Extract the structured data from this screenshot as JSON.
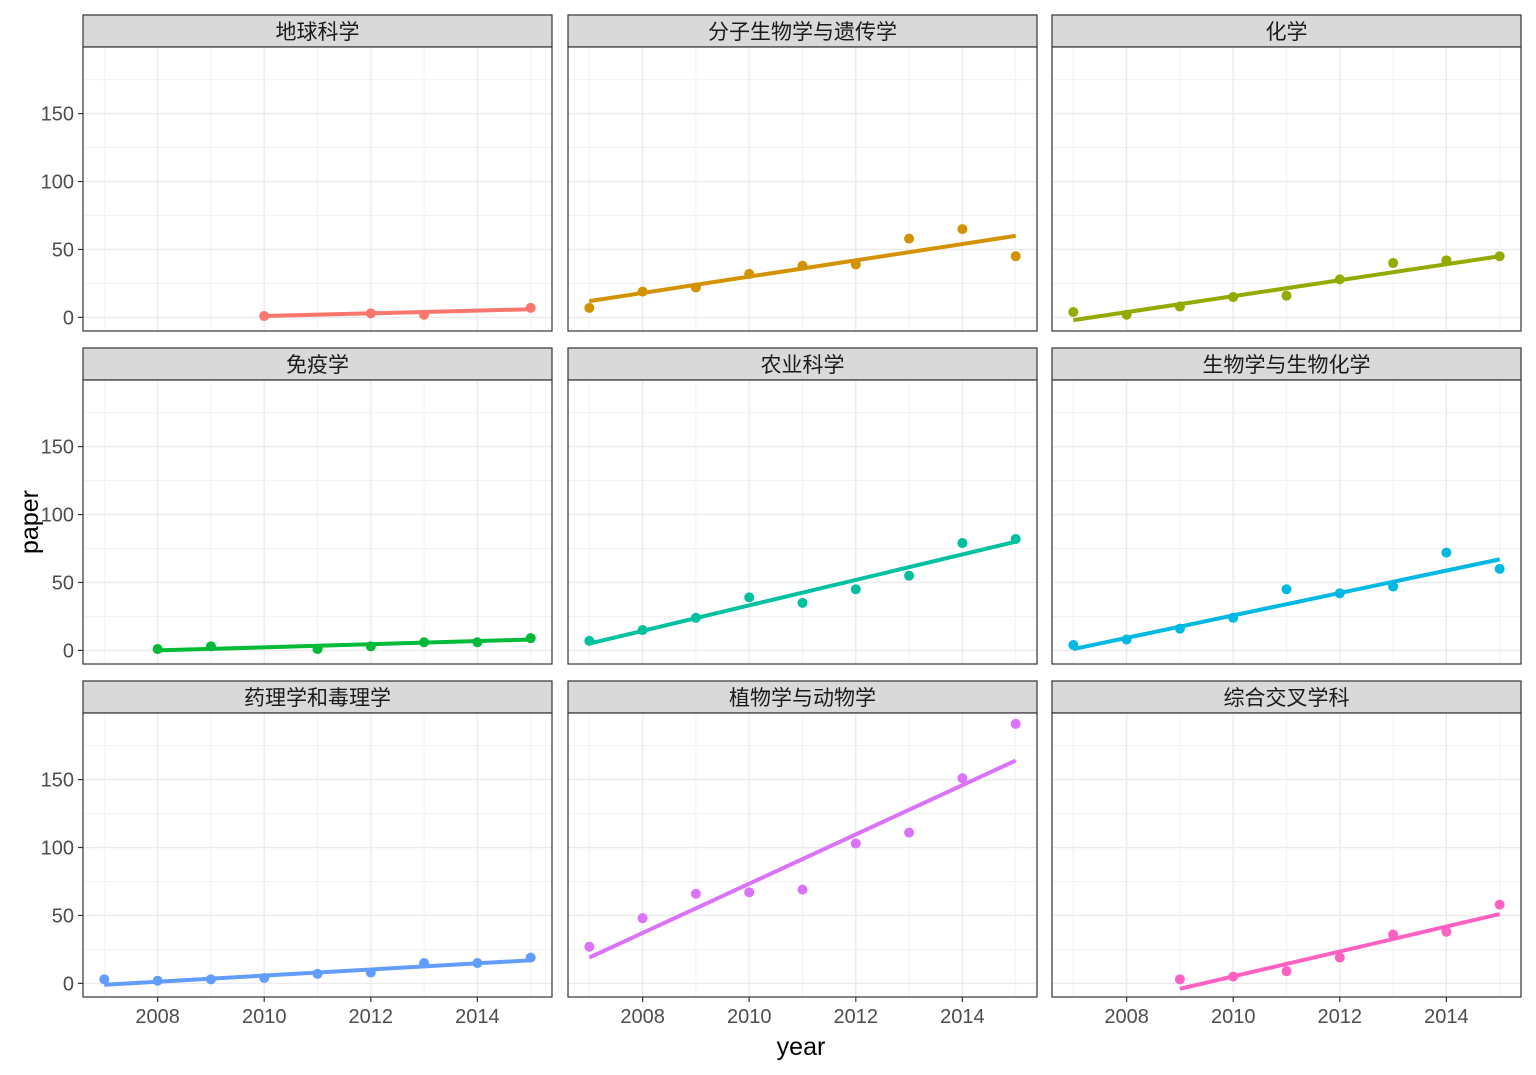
{
  "chart_data": {
    "type": "scatter",
    "layout": "facet-grid 3x3",
    "xlabel": "year",
    "ylabel": "paper",
    "xlim": [
      2006.6,
      2015.4
    ],
    "ylim": [
      -10,
      199
    ],
    "x_ticks": [
      2008,
      2010,
      2012,
      2014
    ],
    "y_ticks": [
      0,
      50,
      100,
      150
    ],
    "grid": "on",
    "legend": "none",
    "overlay": "linear fit line per panel",
    "panels": [
      {
        "title": "地球科学",
        "color": "#F8766D",
        "x": [
          2010,
          2012,
          2013,
          2015
        ],
        "y": [
          1,
          3,
          2,
          7
        ],
        "fit": [
          [
            2010,
            1
          ],
          [
            2015,
            6
          ]
        ]
      },
      {
        "title": "分子生物学与遗传学",
        "color": "#D39200",
        "x": [
          2007,
          2008,
          2009,
          2010,
          2011,
          2012,
          2013,
          2014,
          2015
        ],
        "y": [
          7,
          19,
          22,
          32,
          38,
          39,
          58,
          65,
          45
        ],
        "fit": [
          [
            2007,
            12
          ],
          [
            2015,
            60
          ]
        ]
      },
      {
        "title": "化学",
        "color": "#93AA00",
        "x": [
          2007,
          2008,
          2009,
          2010,
          2011,
          2012,
          2013,
          2014,
          2015
        ],
        "y": [
          4,
          2,
          8,
          15,
          16,
          28,
          40,
          42,
          45
        ],
        "fit": [
          [
            2007,
            -2
          ],
          [
            2015,
            45
          ]
        ]
      },
      {
        "title": "免疫学",
        "color": "#00BA38",
        "x": [
          2008,
          2009,
          2011,
          2012,
          2013,
          2014,
          2015
        ],
        "y": [
          1,
          3,
          1,
          3,
          6,
          6,
          9
        ],
        "fit": [
          [
            2008,
            0
          ],
          [
            2015,
            8
          ]
        ]
      },
      {
        "title": "农业科学",
        "color": "#00C19F",
        "x": [
          2007,
          2008,
          2009,
          2010,
          2011,
          2012,
          2013,
          2014,
          2015
        ],
        "y": [
          7,
          15,
          24,
          39,
          35,
          45,
          55,
          79,
          82
        ],
        "fit": [
          [
            2007,
            5
          ],
          [
            2015,
            80
          ]
        ]
      },
      {
        "title": "生物学与生物化学",
        "color": "#00B9E3",
        "x": [
          2007,
          2008,
          2009,
          2010,
          2011,
          2012,
          2013,
          2014,
          2015
        ],
        "y": [
          4,
          8,
          16,
          24,
          45,
          42,
          47,
          72,
          60
        ],
        "fit": [
          [
            2007,
            1
          ],
          [
            2015,
            67
          ]
        ]
      },
      {
        "title": "药理学和毒理学",
        "color": "#619CFF",
        "x": [
          2007,
          2008,
          2009,
          2010,
          2011,
          2012,
          2013,
          2014,
          2015
        ],
        "y": [
          3,
          2,
          3,
          4,
          7,
          8,
          15,
          15,
          19
        ],
        "fit": [
          [
            2007,
            -1
          ],
          [
            2015,
            17
          ]
        ]
      },
      {
        "title": "植物学与动物学",
        "color": "#DB72FB",
        "x": [
          2007,
          2008,
          2009,
          2010,
          2011,
          2012,
          2013,
          2014,
          2015
        ],
        "y": [
          27,
          48,
          66,
          67,
          69,
          103,
          111,
          151,
          191
        ],
        "fit": [
          [
            2007,
            19
          ],
          [
            2015,
            164
          ]
        ]
      },
      {
        "title": "综合交叉学科",
        "color": "#FF61C3",
        "x": [
          2009,
          2010,
          2011,
          2012,
          2013,
          2014,
          2015
        ],
        "y": [
          3,
          5,
          9,
          19,
          36,
          38,
          58
        ],
        "fit": [
          [
            2009,
            -4
          ],
          [
            2015,
            51
          ]
        ]
      }
    ]
  }
}
